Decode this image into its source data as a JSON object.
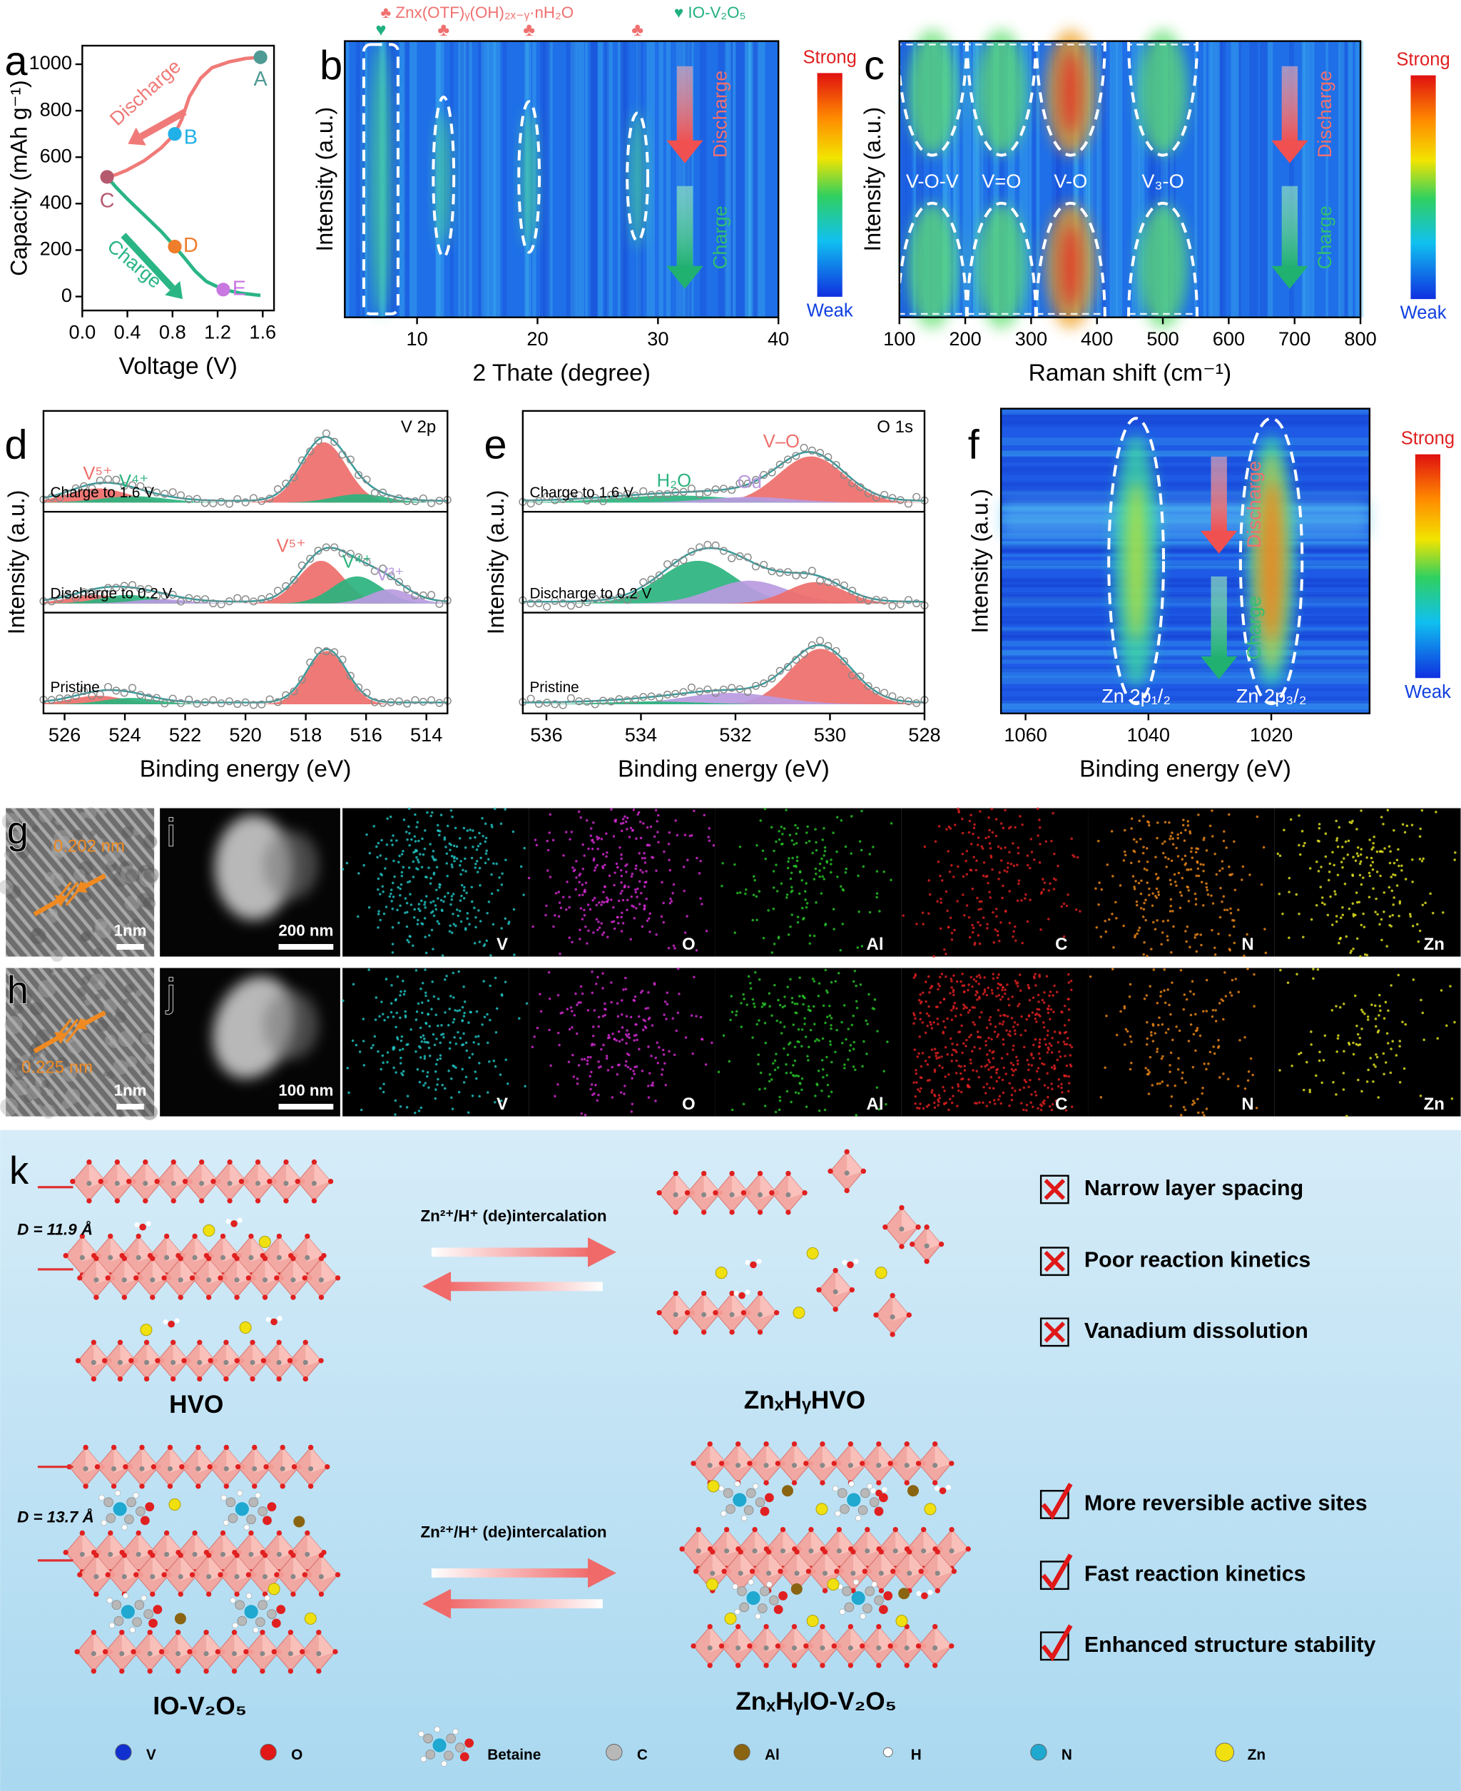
{
  "chart_data": [
    {
      "type": "line",
      "panel": "a",
      "xlabel": "Voltage (V)",
      "ylabel": "Capacity (mAh g⁻¹)",
      "xlim": [
        0,
        1.7
      ],
      "ylim": [
        -60,
        1080
      ],
      "xticks": [
        {
          "value": 0,
          "label": "0.0"
        },
        0.4,
        0.8,
        1.2,
        1.6
      ],
      "yticks": [
        0,
        200,
        400,
        600,
        800,
        1000
      ],
      "series": [
        {
          "color": "#f07a78",
          "x": [
            1.58,
            1.45,
            1.3,
            1.15,
            1.05,
            0.95,
            0.88,
            0.82,
            0.7,
            0.55,
            0.4,
            0.3,
            0.22
          ],
          "values": [
            1030,
            1025,
            1010,
            985,
            940,
            860,
            760,
            700,
            640,
            585,
            545,
            525,
            515
          ]
        },
        {
          "color": "#2ab585",
          "x": [
            0.22,
            0.3,
            0.4,
            0.55,
            0.7,
            0.82,
            0.9,
            1.0,
            1.1,
            1.25,
            1.4,
            1.58
          ],
          "values": [
            515,
            470,
            420,
            350,
            280,
            215,
            170,
            110,
            65,
            30,
            15,
            5
          ]
        }
      ],
      "points": [
        {
          "label": "A",
          "x": 1.58,
          "y": 1030,
          "color": "#4f9a94"
        },
        {
          "label": "B",
          "x": 0.82,
          "y": 700,
          "color": "#22b0e8"
        },
        {
          "label": "C",
          "x": 0.22,
          "y": 515,
          "color": "#b55a6e"
        },
        {
          "label": "D",
          "x": 0.82,
          "y": 215,
          "color": "#f07d2a"
        },
        {
          "label": "E",
          "x": 1.25,
          "y": 30,
          "color": "#c878e0"
        }
      ],
      "annotations": [
        "Discharge",
        "Charge"
      ]
    },
    {
      "type": "heatmap",
      "panel": "b",
      "xlabel": "2 Thate (degree)",
      "ylabel": "Intensity (a.u.)",
      "xlim": [
        4,
        40
      ],
      "xticks": [
        10,
        20,
        30,
        40
      ],
      "colorbar": [
        "Strong",
        "Weak"
      ],
      "annotations": [
        "Discharge",
        "Charge"
      ],
      "legend": [
        "♣ Znx(OTF)ᵧ(OH)₂ₓ₋ᵧ·nH₂O",
        "♥ IO-V₂O₅"
      ],
      "bands": [
        {
          "x": 7,
          "label": "♥"
        },
        {
          "x": 12.2,
          "label": "♣"
        },
        {
          "x": 19.3,
          "label": "♣"
        },
        {
          "x": 28.3,
          "label": "♣"
        }
      ]
    },
    {
      "type": "heatmap",
      "panel": "c",
      "xlabel": "Raman shift (cm⁻¹)",
      "ylabel": "Intensity (a.u.)",
      "xlim": [
        100,
        800
      ],
      "xticks": [
        100,
        200,
        300,
        400,
        500,
        600,
        700,
        800
      ],
      "colorbar": [
        "Strong",
        "Weak"
      ],
      "annotations": [
        "Discharge",
        "Charge"
      ],
      "bands": [
        {
          "x": 150,
          "label": "V-O-V"
        },
        {
          "x": 255,
          "label": "V=O"
        },
        {
          "x": 360,
          "label": "V-O"
        },
        {
          "x": 500,
          "label": "V₃-O"
        }
      ]
    },
    {
      "type": "xps",
      "panel": "d",
      "title": "V 2p",
      "xlabel": "Binding energy (eV)",
      "ylabel": "Intensity (a.u.)",
      "xlim": [
        526.7,
        513.3
      ],
      "xticks": [
        526,
        524,
        522,
        520,
        518,
        516,
        514
      ],
      "spectra": [
        {
          "name": "Charge to 1.6 V",
          "peaks": [
            {
              "center": 517.4,
              "height": 0.85,
              "width": 0.75,
              "color": "#ee6e6a"
            },
            {
              "center": 516.2,
              "height": 0.12,
              "width": 0.9,
              "color": "#2bb37e"
            },
            {
              "center": 524.9,
              "height": 0.2,
              "width": 1.0,
              "color": "#ee6e6a",
              "label": "V⁵⁺"
            },
            {
              "center": 523.7,
              "height": 0.09,
              "width": 1.1,
              "color": "#2bb37e",
              "label": "V⁴⁺"
            }
          ]
        },
        {
          "name": "Discharge to 0.2 V",
          "peaks": [
            {
              "center": 517.5,
              "height": 0.6,
              "width": 0.75,
              "color": "#ee6e6a",
              "label": "V⁵⁺"
            },
            {
              "center": 516.3,
              "height": 0.38,
              "width": 0.8,
              "color": "#2bb37e",
              "label": "V⁴⁺"
            },
            {
              "center": 515.2,
              "height": 0.2,
              "width": 0.7,
              "color": "#b89ae0",
              "label": "V³⁺"
            },
            {
              "center": 525.0,
              "height": 0.12,
              "width": 0.9,
              "color": "#ee6e6a"
            },
            {
              "center": 523.9,
              "height": 0.12,
              "width": 0.9,
              "color": "#2bb37e"
            },
            {
              "center": 522.8,
              "height": 0.06,
              "width": 0.9,
              "color": "#b89ae0"
            }
          ]
        },
        {
          "name": "Pristine",
          "peaks": [
            {
              "center": 517.3,
              "height": 0.75,
              "width": 0.65,
              "color": "#ee6e6a"
            },
            {
              "center": 524.9,
              "height": 0.12,
              "width": 0.9,
              "color": "#ee6e6a"
            },
            {
              "center": 523.8,
              "height": 0.09,
              "width": 0.9,
              "color": "#2bb37e"
            }
          ]
        }
      ]
    },
    {
      "type": "xps",
      "panel": "e",
      "title": "O 1s",
      "xlabel": "Binding energy (eV)",
      "ylabel": "Intensity (a.u.)",
      "xlim": [
        536.5,
        528
      ],
      "xticks": [
        536,
        534,
        532,
        530,
        528
      ],
      "spectra": [
        {
          "name": "Charge to 1.6 V",
          "peaks": [
            {
              "center": 530.4,
              "height": 0.65,
              "width": 0.7,
              "color": "#ee6e6a",
              "label": "V–O"
            },
            {
              "center": 533.3,
              "height": 0.1,
              "width": 1.3,
              "color": "#2bb37e",
              "label": "H₂O"
            },
            {
              "center": 531.7,
              "height": 0.08,
              "width": 0.9,
              "color": "#b89ae0",
              "label": "Od"
            }
          ]
        },
        {
          "name": "Discharge to 0.2 V",
          "peaks": [
            {
              "center": 532.8,
              "height": 0.6,
              "width": 0.8,
              "color": "#2bb37e"
            },
            {
              "center": 531.7,
              "height": 0.32,
              "width": 0.8,
              "color": "#b89ae0"
            },
            {
              "center": 530.3,
              "height": 0.3,
              "width": 0.6,
              "color": "#ee6e6a"
            }
          ]
        },
        {
          "name": "Pristine",
          "peaks": [
            {
              "center": 530.2,
              "height": 0.78,
              "width": 0.65,
              "color": "#ee6e6a"
            },
            {
              "center": 532.1,
              "height": 0.16,
              "width": 1.0,
              "color": "#b89ae0"
            },
            {
              "center": 533.8,
              "height": 0.04,
              "width": 1.0,
              "color": "#2bb37e"
            }
          ]
        }
      ]
    },
    {
      "type": "heatmap",
      "panel": "f",
      "xlabel": "Binding energy (eV)",
      "ylabel": "Intensity (a.u.)",
      "xlim": [
        1064,
        1004
      ],
      "xticks": [
        1060,
        1040,
        1020
      ],
      "colorbar": [
        "Strong",
        "Weak"
      ],
      "annotations": [
        "Discharge",
        "Charge"
      ],
      "bands": [
        {
          "x": 1042,
          "label": "Zn 2p₁/₂"
        },
        {
          "x": 1020,
          "label": "Zn 2p₃/₂"
        }
      ]
    }
  ],
  "images": [
    {
      "panel": "g",
      "spacing": "0.202 nm",
      "scale": "1nm"
    },
    {
      "panel": "h",
      "spacing": "0.225 nm",
      "scale": "1nm"
    }
  ],
  "maps": [
    {
      "panel": "i",
      "scale": "200 nm",
      "elements": [
        "V",
        "O",
        "Al",
        "C",
        "N",
        "Zn"
      ]
    },
    {
      "panel": "j",
      "scale": "100 nm",
      "elements": [
        "V",
        "O",
        "Al",
        "C",
        "N",
        "Zn"
      ]
    }
  ],
  "scheme": {
    "panel": "k",
    "rows": [
      {
        "before": "HVO",
        "after": "ZnₓHᵧHVO",
        "spacing": "D = 11.9 Å",
        "process": "Zn²⁺/H⁺ (de)intercalation",
        "points": [
          "Narrow layer spacing",
          "Poor reaction kinetics",
          "Vanadium dissolution"
        ]
      },
      {
        "before": "IO-V₂O₅",
        "after": "ZnₓHᵧIO-V₂O₅",
        "spacing": "D = 13.7 Å",
        "process": "Zn²⁺/H⁺ (de)intercalation",
        "points": [
          "More reversible active sites",
          "Fast reaction kinetics",
          "Enhanced structure stability"
        ]
      }
    ],
    "legend": [
      "V",
      "O",
      "Betaine",
      "C",
      "Al",
      "H",
      "N",
      "Zn"
    ]
  }
}
